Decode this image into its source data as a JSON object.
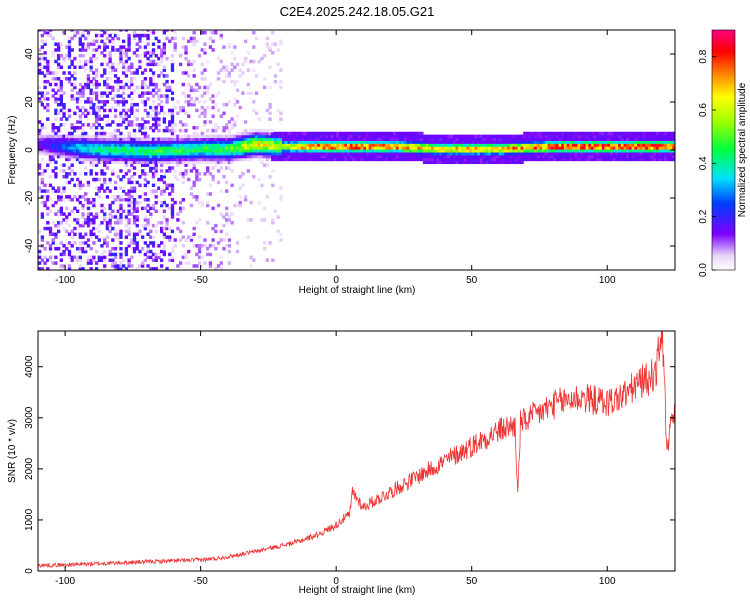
{
  "title": "C2E4.2025.242.18.05.G21",
  "chart_data": [
    {
      "type": "heatmap",
      "xlabel": "Height of straight line (km)",
      "ylabel": "Frequency (Hz)",
      "xlim": [
        -110,
        125
      ],
      "ylim": [
        -50,
        50
      ],
      "x_ticks": [
        -100,
        -50,
        0,
        50,
        100
      ],
      "y_ticks": [
        -40,
        -20,
        0,
        20,
        40
      ],
      "colorbar": {
        "label": "Normalized spectral amplitude",
        "range": [
          0,
          0.9
        ],
        "ticks": [
          "0.0",
          "0.2",
          "0.4",
          "0.6",
          "0.8"
        ],
        "colormap": "rainbow"
      },
      "ridge": {
        "x": [
          -110,
          -90,
          -70,
          -50,
          -40,
          -30,
          -20,
          -10,
          0,
          20,
          40,
          60,
          80,
          100,
          125
        ],
        "center_freq": [
          2,
          0,
          -1,
          0,
          0,
          2,
          1,
          1,
          1,
          1,
          0,
          0,
          1,
          1,
          1
        ],
        "peak_amplitude": [
          0.15,
          0.4,
          0.45,
          0.45,
          0.5,
          0.65,
          0.6,
          0.75,
          0.8,
          0.75,
          0.7,
          0.7,
          0.8,
          0.8,
          0.85
        ]
      }
    },
    {
      "type": "line",
      "xlabel": "Height of straight line (km)",
      "ylabel": "SNR (10 * v/v)",
      "xlim": [
        -110,
        125
      ],
      "ylim": [
        0,
        4700
      ],
      "x_ticks": [
        -100,
        -50,
        0,
        50,
        100
      ],
      "y_ticks": [
        0,
        1000,
        2000,
        3000,
        4000
      ],
      "color": "#ee3333",
      "series": [
        {
          "x": [
            -110,
            -100,
            -90,
            -80,
            -70,
            -60,
            -50,
            -45,
            -40,
            -35,
            -30,
            -25,
            -20,
            -15,
            -10,
            -5,
            0,
            2,
            5,
            6,
            10,
            15,
            20,
            25,
            30,
            35,
            40,
            45,
            50,
            55,
            60,
            64,
            66,
            67,
            68,
            70,
            75,
            80,
            85,
            90,
            95,
            100,
            105,
            110,
            112,
            115,
            118,
            120,
            121,
            122,
            123,
            124,
            125
          ],
          "y": [
            110,
            120,
            140,
            160,
            180,
            200,
            220,
            240,
            280,
            330,
            380,
            440,
            500,
            560,
            650,
            760,
            900,
            1000,
            1100,
            1550,
            1250,
            1400,
            1550,
            1700,
            1850,
            2000,
            2150,
            2300,
            2450,
            2600,
            2750,
            2830,
            2850,
            1450,
            2900,
            2950,
            3100,
            3250,
            3350,
            3400,
            3350,
            3300,
            3400,
            3600,
            3700,
            3750,
            3900,
            4700,
            4000,
            2200,
            2700,
            3000,
            3000
          ]
        }
      ]
    }
  ]
}
